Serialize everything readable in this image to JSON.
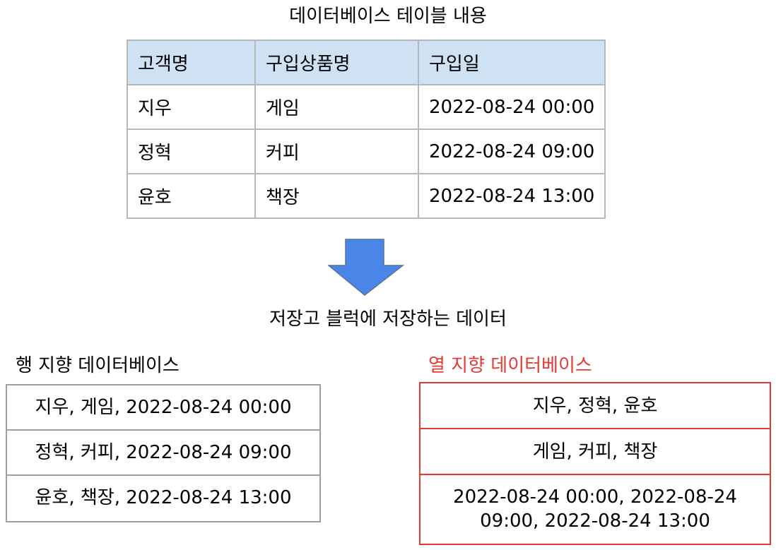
{
  "titles": {
    "database_table": "데이터베이스 테이블 내용",
    "storage_block": "저장고 블럭에 저장하는 데이터",
    "row_oriented": "행 지향 데이터베이스",
    "column_oriented": "열 지향 데이터베이스"
  },
  "source_table": {
    "headers": [
      "고객명",
      "구입상품명",
      "구입일"
    ],
    "rows": [
      [
        "지우",
        "게임",
        "2022-08-24 00:00"
      ],
      [
        "정혁",
        "커피",
        "2022-08-24 09:00"
      ],
      [
        "윤호",
        "책장",
        "2022-08-24 13:00"
      ]
    ]
  },
  "row_store": [
    "지우, 게임, 2022-08-24 00:00",
    "정혁, 커피, 2022-08-24 09:00",
    "윤호, 책장, 2022-08-24 13:00"
  ],
  "column_store": [
    "지우, 정혁, 윤호",
    "게임, 커피, 책장",
    "2022-08-24 00:00, 2022-08-24 09:00, 2022-08-24 13:00"
  ],
  "colors": {
    "header_fill": "#cfe2f3",
    "arrow_fill": "#4a86e8",
    "arrow_stroke": "#5b6f99",
    "highlight": "#e53935",
    "border": "#b7b7b7"
  }
}
